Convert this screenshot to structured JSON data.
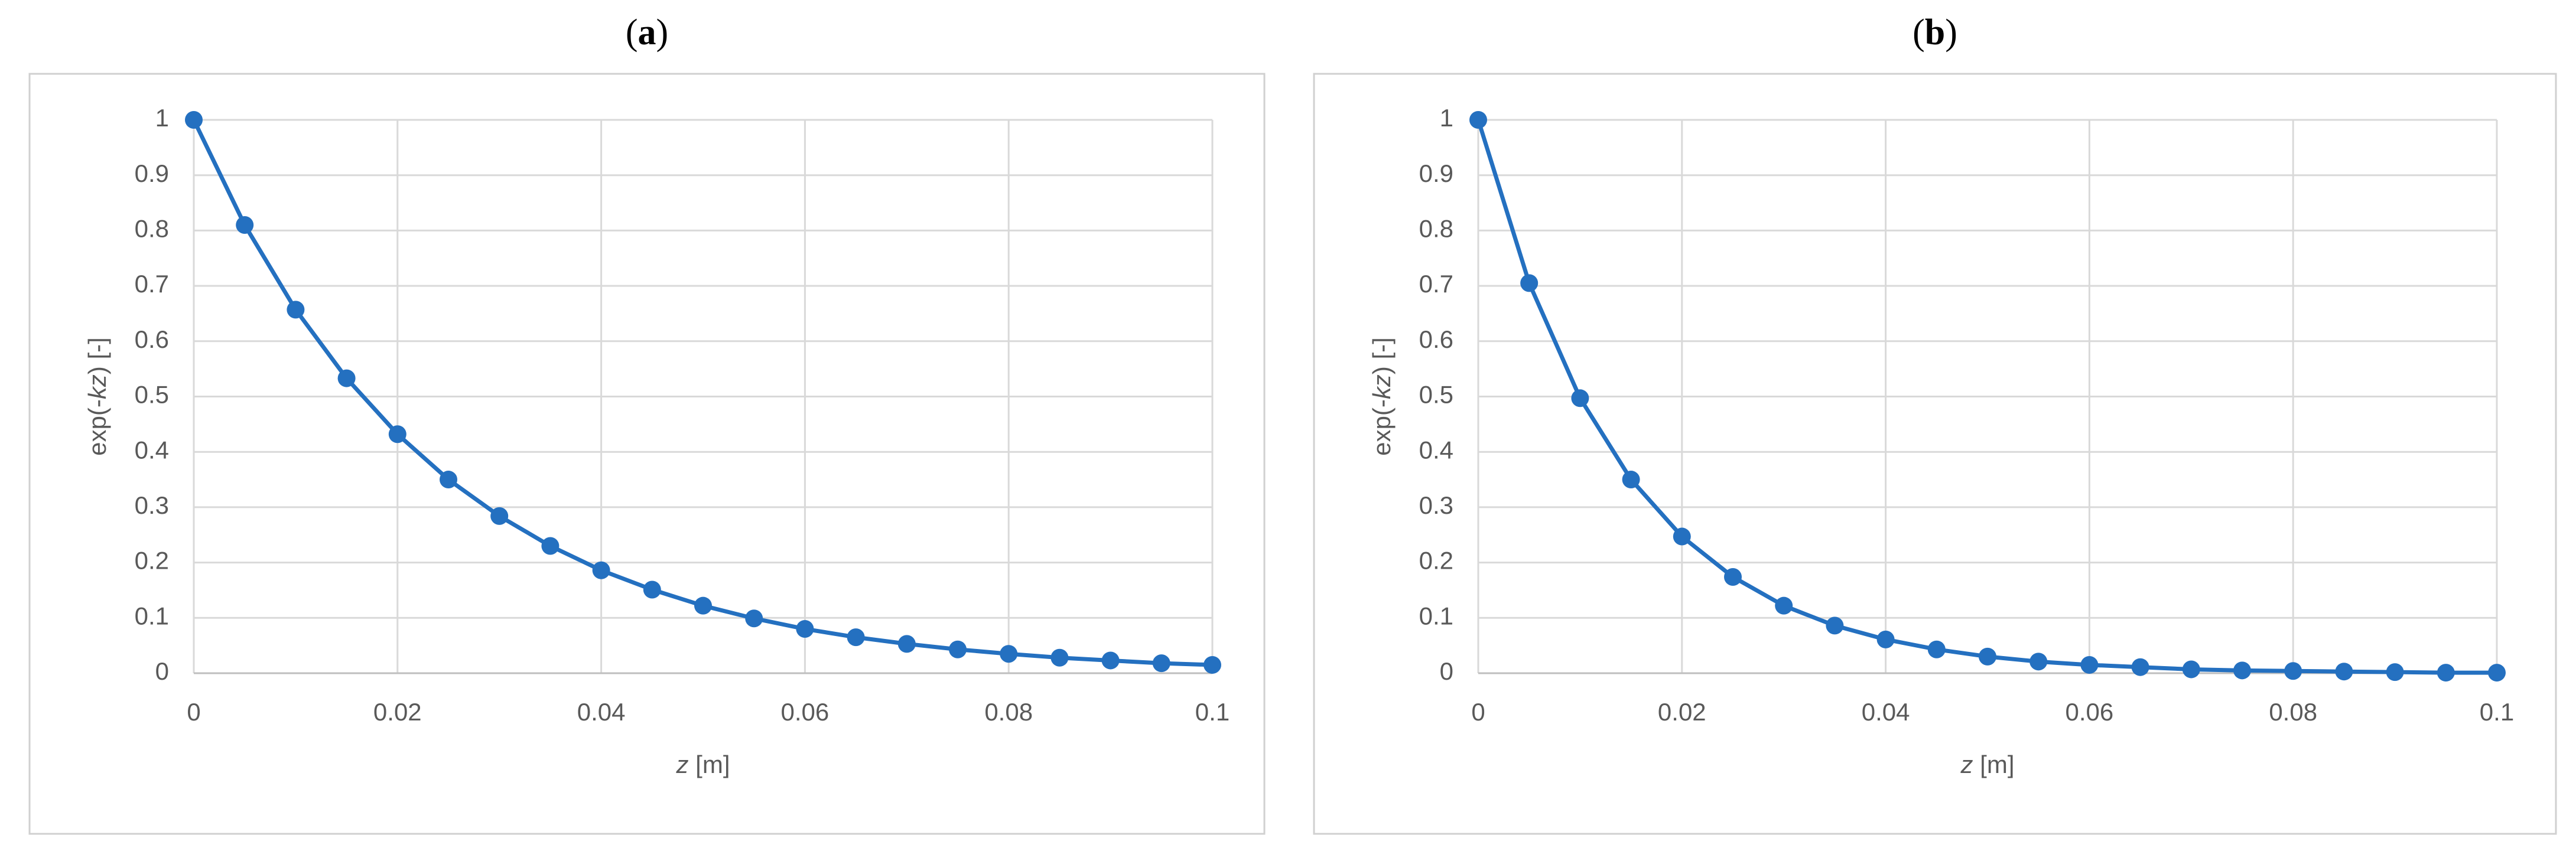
{
  "chart_data": [
    {
      "type": "line",
      "panel_label": [
        "(",
        "a",
        ")"
      ],
      "x_label": [
        "z",
        " [m]"
      ],
      "y_label": [
        "exp(-",
        "kz",
        ") [-]"
      ],
      "x": [
        0,
        0.005,
        0.01,
        0.015,
        0.02,
        0.025,
        0.03,
        0.035,
        0.04,
        0.045,
        0.05,
        0.055,
        0.06,
        0.065,
        0.07,
        0.075,
        0.08,
        0.085,
        0.09,
        0.095,
        0.1
      ],
      "series": [
        {
          "color": "#2470c0",
          "values": [
            1,
            0.81,
            0.657,
            0.533,
            0.432,
            0.35,
            0.284,
            0.23,
            0.186,
            0.151,
            0.122,
            0.099,
            0.08,
            0.065,
            0.053,
            0.043,
            0.035,
            0.028,
            0.023,
            0.018,
            0.015
          ]
        }
      ],
      "xlim": [
        0,
        0.1
      ],
      "xticks": [
        0,
        0.02,
        0.04,
        0.06,
        0.08,
        0.1
      ],
      "ylim": [
        0,
        1
      ],
      "yticks": [
        0,
        0.1,
        0.2,
        0.3,
        0.4,
        0.5,
        0.6,
        0.7,
        0.8,
        0.9,
        1
      ],
      "grid": true
    },
    {
      "type": "line",
      "panel_label": [
        "(",
        "b",
        ")"
      ],
      "x_label": [
        "z",
        " [m]"
      ],
      "y_label": [
        "exp(-",
        "kz",
        ") [-]"
      ],
      "x": [
        0,
        0.005,
        0.01,
        0.015,
        0.02,
        0.025,
        0.03,
        0.035,
        0.04,
        0.045,
        0.05,
        0.055,
        0.06,
        0.065,
        0.07,
        0.075,
        0.08,
        0.085,
        0.09,
        0.095,
        0.1
      ],
      "series": [
        {
          "color": "#2470c0",
          "values": [
            1,
            0.705,
            0.497,
            0.35,
            0.247,
            0.174,
            0.122,
            0.086,
            0.061,
            0.043,
            0.03,
            0.021,
            0.015,
            0.011,
            0.007,
            0.005,
            0.004,
            0.003,
            0.002,
            0.001,
            0.001
          ]
        }
      ],
      "xlim": [
        0,
        0.1
      ],
      "xticks": [
        0,
        0.02,
        0.04,
        0.06,
        0.08,
        0.1
      ],
      "ylim": [
        0,
        1
      ],
      "yticks": [
        0,
        0.1,
        0.2,
        0.3,
        0.4,
        0.5,
        0.6,
        0.7,
        0.8,
        0.9,
        1
      ],
      "grid": true
    }
  ]
}
